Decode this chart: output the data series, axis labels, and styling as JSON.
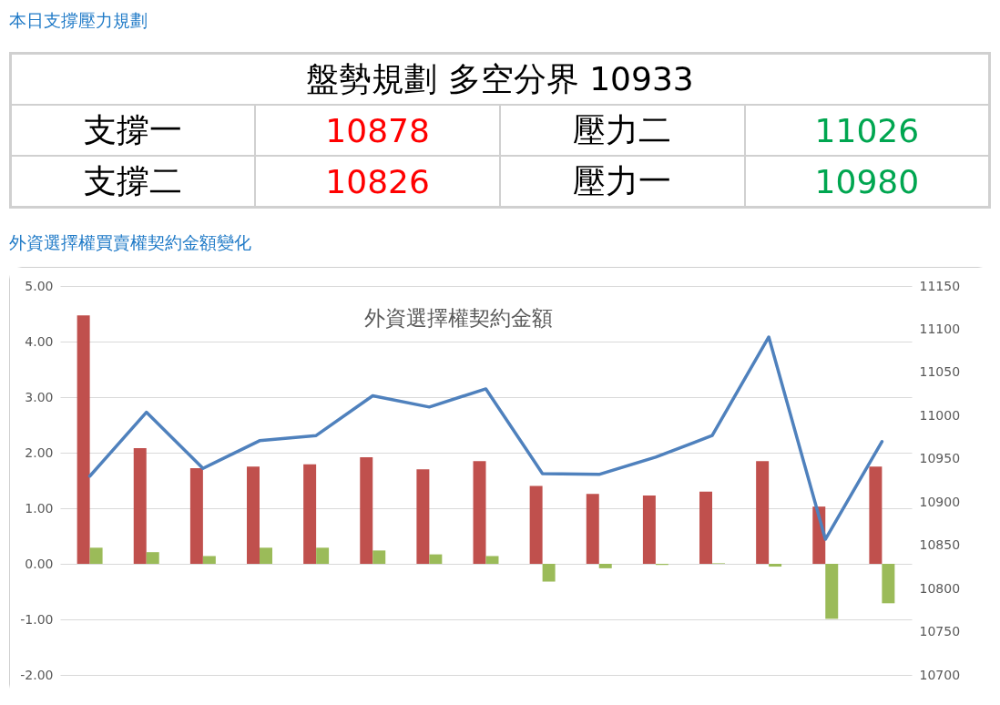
{
  "chart_data": [
    {
      "type": "other",
      "title": "本日支撐壓力規劃",
      "annotations": [
        "盤勢規劃 多空分界 10933",
        "支撐一",
        "10878",
        "壓力二",
        "11026",
        "支撐二",
        "10826",
        "壓力一",
        "10980"
      ]
    },
    {
      "type": "bar",
      "title": "外資選擇權買賣權契約金額變化",
      "subtitle": "外資選擇權契約金額",
      "categories": [
        null,
        null,
        null,
        null,
        null,
        null,
        null,
        null,
        null,
        null,
        null,
        null,
        null,
        null,
        null
      ],
      "series": [
        {
          "type": "bar",
          "color": "#c0504d",
          "values": [
            4.47,
            2.08,
            1.72,
            1.75,
            1.79,
            1.92,
            1.7,
            1.85,
            1.4,
            1.26,
            1.23,
            1.3,
            1.85,
            1.03,
            1.75
          ]
        },
        {
          "type": "bar",
          "color": "#9bbb59",
          "values": [
            0.29,
            0.21,
            0.14,
            0.29,
            0.29,
            0.24,
            0.17,
            0.14,
            -0.32,
            -0.08,
            -0.02,
            0.01,
            -0.05,
            -0.99,
            -0.71
          ]
        },
        {
          "type": "line",
          "axis": "y2",
          "color": "#4f81bd",
          "values": [
            10930,
            11004,
            10939,
            10971,
            10977,
            11023,
            11010,
            11031,
            10933,
            10932,
            10952,
            10977,
            11091,
            10857,
            10970
          ]
        }
      ],
      "ylim": [
        -2,
        5
      ],
      "yticks": [
        {
          "value": -2,
          "label": "-2.00"
        },
        {
          "value": -1,
          "label": "-1.00"
        },
        {
          "value": 0,
          "label": "0.00"
        },
        {
          "value": 1,
          "label": "1.00"
        },
        {
          "value": 2,
          "label": "2.00"
        },
        {
          "value": 3,
          "label": "3.00"
        },
        {
          "value": 4,
          "label": "4.00"
        },
        {
          "value": 5,
          "label": "5.00"
        }
      ],
      "y2lim": [
        10700,
        11150
      ],
      "y2ticks": [
        10700,
        10750,
        10800,
        10850,
        10900,
        10950,
        11000,
        11050,
        11100,
        11150
      ],
      "grid": "y",
      "legend": false,
      "marker": "none",
      "line_style": "solid"
    }
  ]
}
